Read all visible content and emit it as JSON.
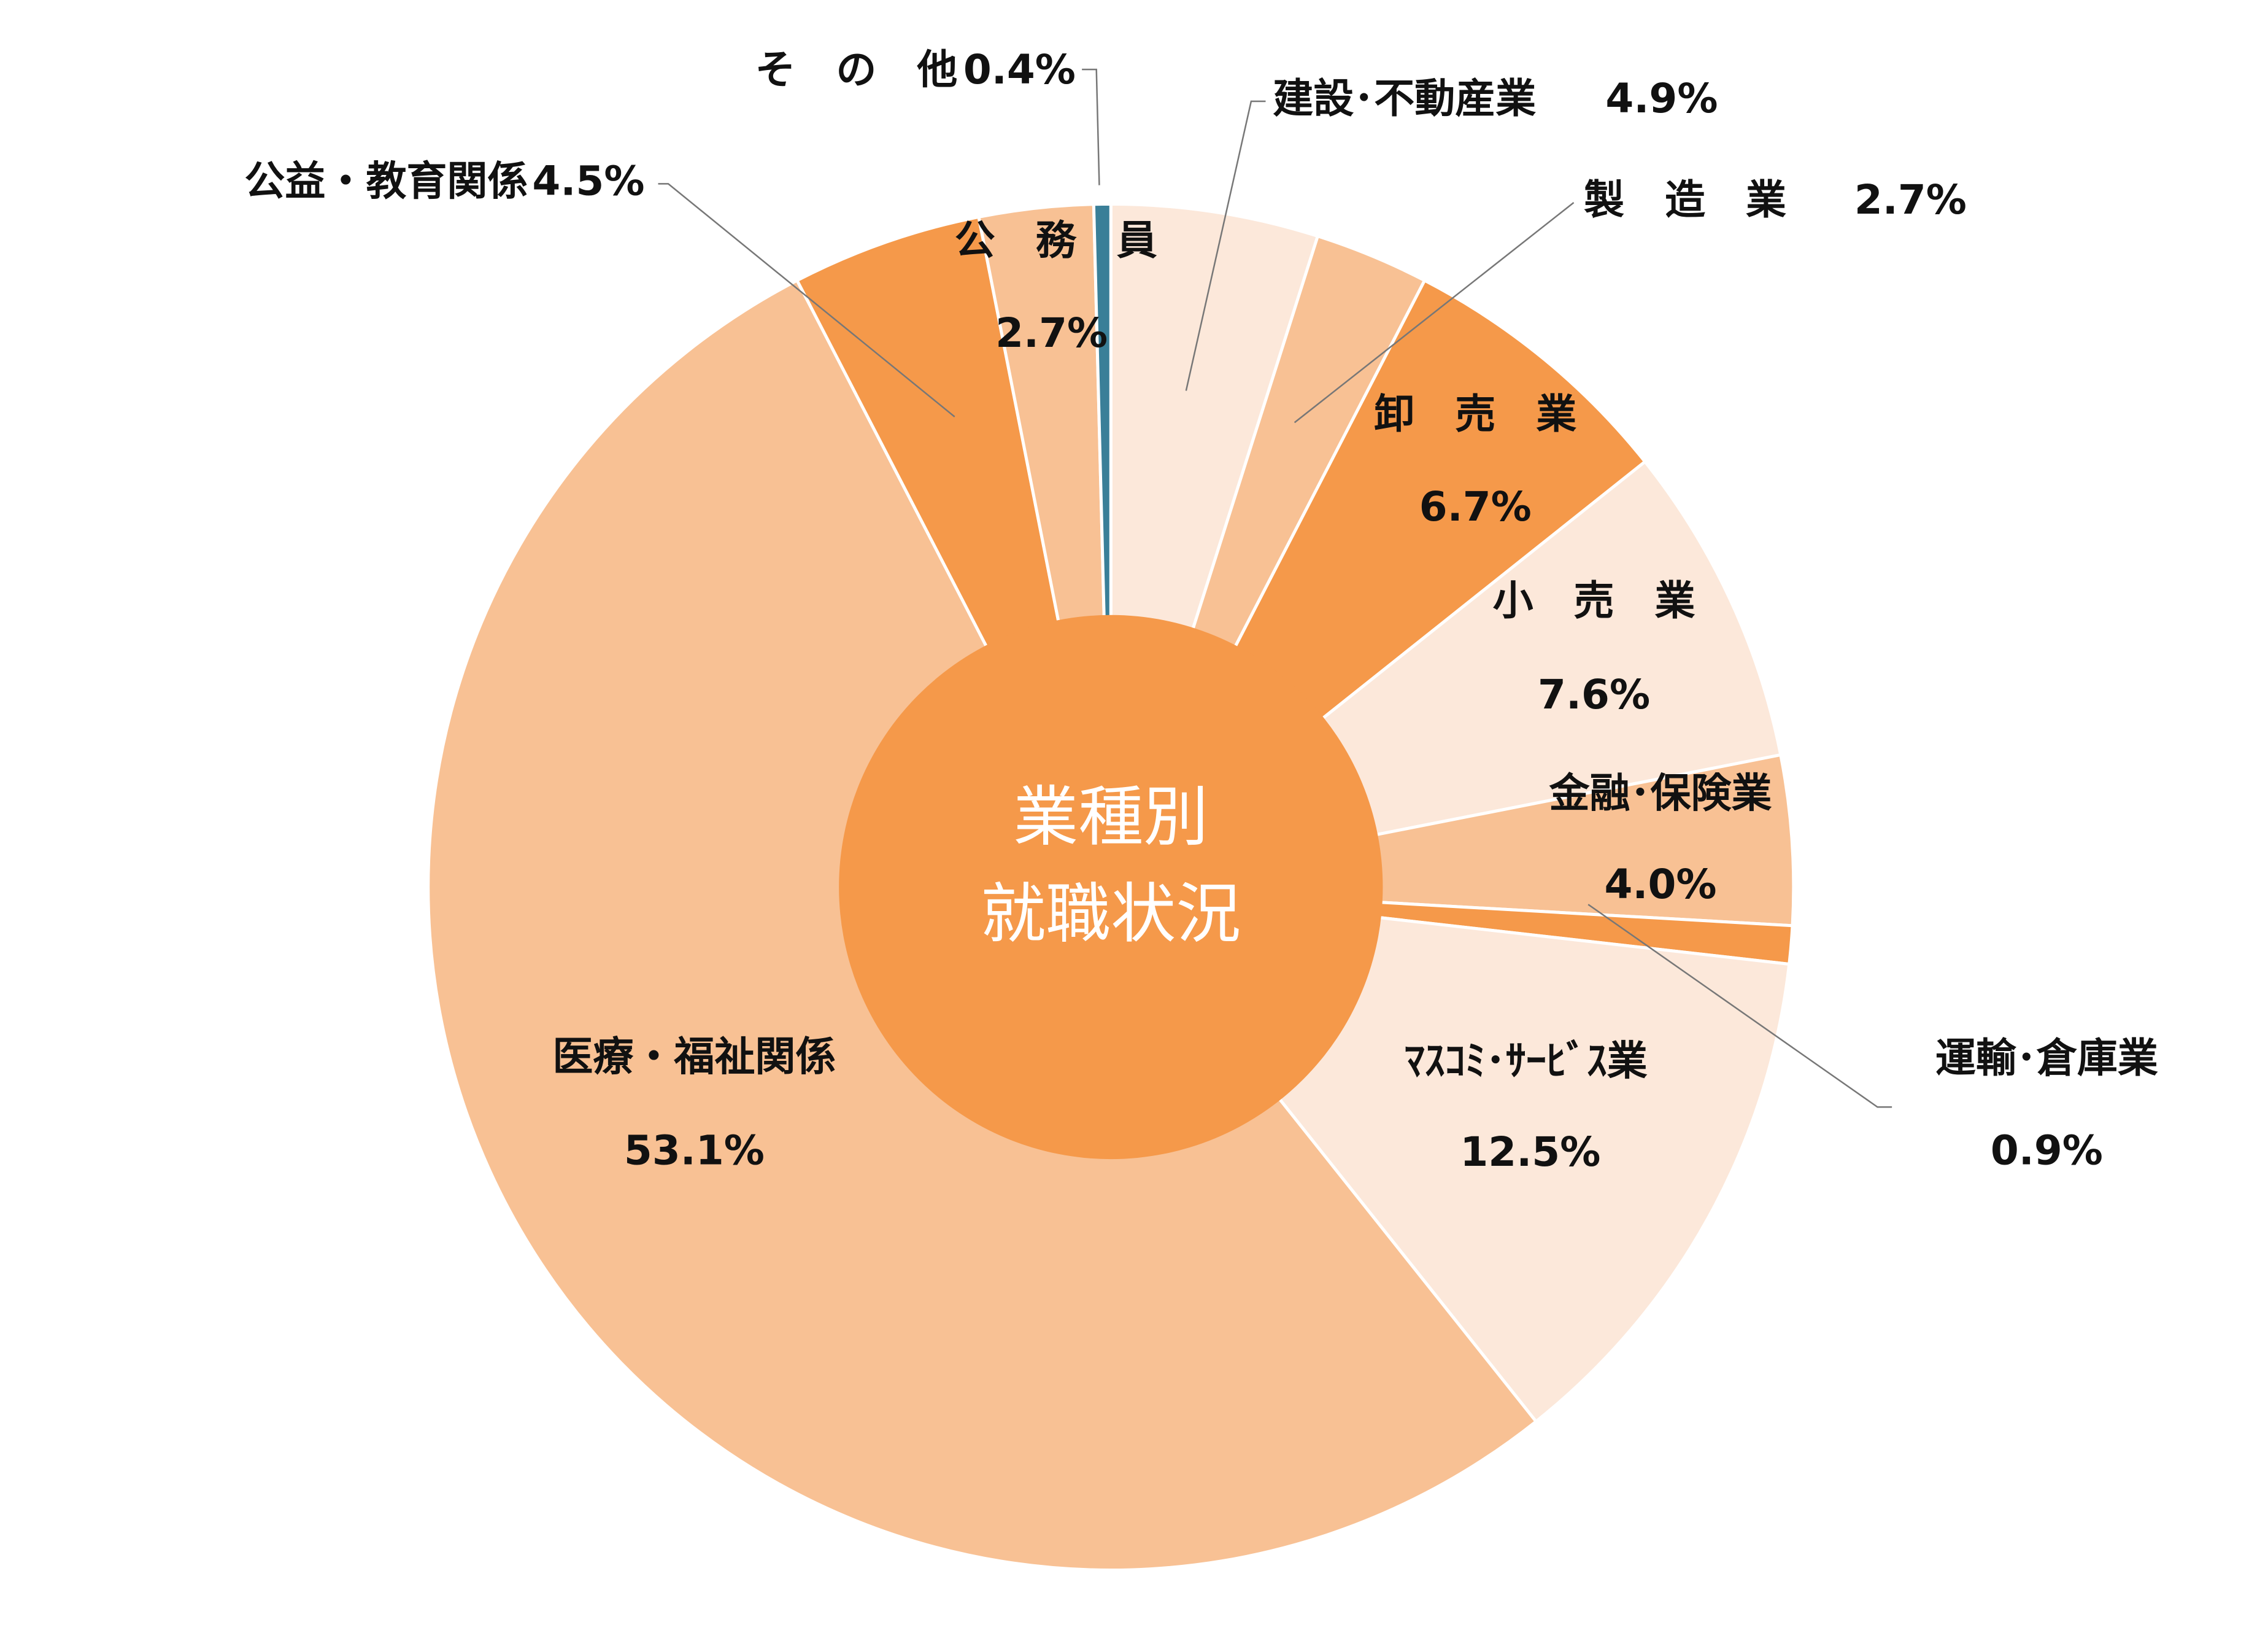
{
  "chart_data": {
    "type": "pie",
    "center_text": [
      "業種別",
      "就職状況"
    ],
    "categories": [
      "建設･不動産業",
      "製　造　業",
      "卸　売　業",
      "小　売　業",
      "金融･保険業",
      "運輸･倉庫業",
      "ﾏｽｺﾐ･ｻｰﾋﾞｽ業",
      "医療・福祉関係",
      "公益・教育関係",
      "公　務　員",
      "そ　の　他"
    ],
    "values": [
      4.9,
      2.7,
      6.7,
      7.6,
      4.0,
      0.9,
      12.5,
      53.1,
      4.5,
      2.7,
      0.4
    ],
    "value_labels": [
      "4.9%",
      "2.7%",
      "6.7%",
      "7.6%",
      "4.0%",
      "0.9%",
      "12.5%",
      "53.1%",
      "4.5%",
      "2.7%",
      "0.4%"
    ],
    "colors": [
      "#fce8da",
      "#f8c194",
      "#f5994a",
      "#fce8da",
      "#f8c194",
      "#f5994a",
      "#fce8da",
      "#f8c194",
      "#f5994a",
      "#f8c194",
      "#3a7f98"
    ],
    "center_color": "#f5994a"
  }
}
